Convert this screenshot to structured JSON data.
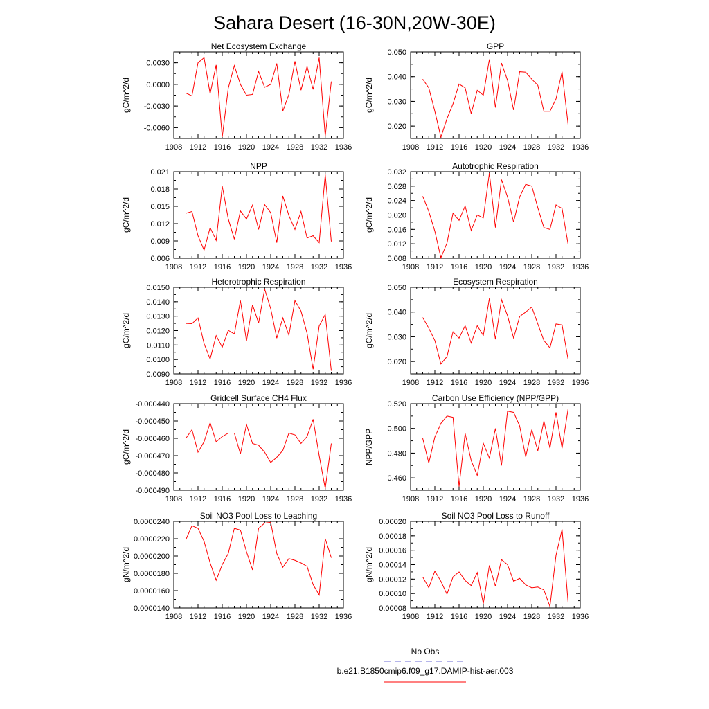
{
  "figure": {
    "title": "Sahara Desert (16-30N,20W-30E)"
  },
  "colors": {
    "series_line": "#ff0000",
    "obs_line": "#6b6bd6",
    "axis": "#000000",
    "background": "#ffffff"
  },
  "legend": {
    "obs_label": "No Obs",
    "model_label": "b.e21.B1850cmip6.f09_g17.DAMIP-hist-aer.003"
  },
  "chart_data": [
    {
      "type": "line",
      "title": "Net Ecosystem Exchange",
      "ylabel": "gC/m^2/d",
      "xlim": [
        1908,
        1936
      ],
      "xticks": [
        "1908",
        "1912",
        "1916",
        "1920",
        "1924",
        "1928",
        "1932",
        "1936"
      ],
      "ylim": [
        -0.0075,
        0.0045
      ],
      "yticks": [
        "-0.0060",
        "-0.0030",
        "0.0000",
        "0.0030"
      ],
      "ytick_values": [
        -0.006,
        -0.003,
        0.0,
        0.003
      ],
      "x": [
        1910,
        1911,
        1912,
        1913,
        1914,
        1915,
        1916,
        1917,
        1918,
        1919,
        1920,
        1921,
        1922,
        1923,
        1924,
        1925,
        1926,
        1927,
        1928,
        1929,
        1930,
        1931,
        1932,
        1933,
        1934
      ],
      "series": [
        {
          "values": [
            -0.0012,
            -0.0016,
            0.003,
            0.0037,
            -0.0013,
            0.0027,
            -0.0073,
            -0.0005,
            0.0026,
            0.0,
            -0.0015,
            -0.0014,
            0.0018,
            -0.0004,
            0.0,
            0.0029,
            -0.0037,
            -0.0014,
            0.0032,
            -0.0008,
            0.0025,
            -0.0007,
            0.0037,
            -0.0072,
            0.0004
          ]
        }
      ]
    },
    {
      "type": "line",
      "title": "GPP",
      "ylabel": "gC/m^2/d",
      "xlim": [
        1908,
        1936
      ],
      "xticks": [
        "1908",
        "1912",
        "1916",
        "1920",
        "1924",
        "1928",
        "1932",
        "1936"
      ],
      "ylim": [
        0.015,
        0.05
      ],
      "yticks": [
        "0.020",
        "0.030",
        "0.040",
        "0.050"
      ],
      "ytick_values": [
        0.02,
        0.03,
        0.04,
        0.05
      ],
      "x": [
        1910,
        1911,
        1912,
        1913,
        1914,
        1915,
        1916,
        1917,
        1918,
        1919,
        1920,
        1921,
        1922,
        1923,
        1924,
        1925,
        1926,
        1927,
        1928,
        1929,
        1930,
        1931,
        1932,
        1933,
        1934
      ],
      "series": [
        {
          "values": [
            0.039,
            0.0355,
            0.026,
            0.0155,
            0.023,
            0.029,
            0.037,
            0.0355,
            0.025,
            0.0345,
            0.0325,
            0.047,
            0.0275,
            0.0455,
            0.0385,
            0.0265,
            0.042,
            0.0418,
            0.039,
            0.0365,
            0.026,
            0.026,
            0.031,
            0.042,
            0.0205
          ]
        }
      ]
    },
    {
      "type": "line",
      "title": "NPP",
      "ylabel": "gC/m^2/d",
      "xlim": [
        1908,
        1936
      ],
      "xticks": [
        "1908",
        "1912",
        "1916",
        "1920",
        "1924",
        "1928",
        "1932",
        "1936"
      ],
      "ylim": [
        0.006,
        0.021
      ],
      "yticks": [
        "0.006",
        "0.009",
        "0.012",
        "0.015",
        "0.018",
        "0.021"
      ],
      "ytick_values": [
        0.006,
        0.009,
        0.012,
        0.015,
        0.018,
        0.021
      ],
      "x": [
        1910,
        1911,
        1912,
        1913,
        1914,
        1915,
        1916,
        1917,
        1918,
        1919,
        1920,
        1921,
        1922,
        1923,
        1924,
        1925,
        1926,
        1927,
        1928,
        1929,
        1930,
        1931,
        1932,
        1933,
        1934
      ],
      "series": [
        {
          "values": [
            0.0138,
            0.0141,
            0.0099,
            0.0074,
            0.0113,
            0.0091,
            0.0185,
            0.0128,
            0.0093,
            0.0142,
            0.0128,
            0.0152,
            0.011,
            0.0153,
            0.0139,
            0.0087,
            0.0168,
            0.0134,
            0.011,
            0.0141,
            0.0095,
            0.0099,
            0.0087,
            0.0205,
            0.0089
          ]
        }
      ]
    },
    {
      "type": "line",
      "title": "Autotrophic Respiration",
      "ylabel": "gC/m^2/d",
      "xlim": [
        1908,
        1936
      ],
      "xticks": [
        "1908",
        "1912",
        "1916",
        "1920",
        "1924",
        "1928",
        "1932",
        "1936"
      ],
      "ylim": [
        0.008,
        0.032
      ],
      "yticks": [
        "0.008",
        "0.012",
        "0.016",
        "0.020",
        "0.024",
        "0.028",
        "0.032"
      ],
      "ytick_values": [
        0.008,
        0.012,
        0.016,
        0.02,
        0.024,
        0.028,
        0.032
      ],
      "x": [
        1910,
        1911,
        1912,
        1913,
        1914,
        1915,
        1916,
        1917,
        1918,
        1919,
        1920,
        1921,
        1922,
        1923,
        1924,
        1925,
        1926,
        1927,
        1928,
        1929,
        1930,
        1931,
        1932,
        1933,
        1934
      ],
      "series": [
        {
          "values": [
            0.0252,
            0.021,
            0.0155,
            0.0081,
            0.0122,
            0.0205,
            0.0185,
            0.0225,
            0.0157,
            0.02,
            0.0192,
            0.0316,
            0.0165,
            0.0298,
            0.025,
            0.018,
            0.025,
            0.0285,
            0.028,
            0.022,
            0.0165,
            0.016,
            0.0228,
            0.0218,
            0.0118
          ]
        }
      ]
    },
    {
      "type": "line",
      "title": "Heterotrophic Respiration",
      "ylabel": "gC/m^2/d",
      "xlim": [
        1908,
        1936
      ],
      "xticks": [
        "1908",
        "1912",
        "1916",
        "1920",
        "1924",
        "1928",
        "1932",
        "1936"
      ],
      "ylim": [
        0.009,
        0.015
      ],
      "yticks": [
        "0.0090",
        "0.0100",
        "0.0110",
        "0.0120",
        "0.0130",
        "0.0140",
        "0.0150"
      ],
      "ytick_values": [
        0.009,
        0.01,
        0.011,
        0.012,
        0.013,
        0.014,
        0.015
      ],
      "x": [
        1910,
        1911,
        1912,
        1913,
        1914,
        1915,
        1916,
        1917,
        1918,
        1919,
        1920,
        1921,
        1922,
        1923,
        1924,
        1925,
        1926,
        1927,
        1928,
        1929,
        1930,
        1931,
        1932,
        1933,
        1934
      ],
      "series": [
        {
          "values": [
            0.0125,
            0.01248,
            0.01288,
            0.0111,
            0.01003,
            0.01165,
            0.01085,
            0.01202,
            0.01177,
            0.01408,
            0.01128,
            0.01379,
            0.01252,
            0.01488,
            0.01352,
            0.01148,
            0.01288,
            0.01168,
            0.01408,
            0.01335,
            0.01182,
            0.00932,
            0.01232,
            0.01312,
            0.00922
          ]
        }
      ]
    },
    {
      "type": "line",
      "title": "Ecosystem Respiration",
      "ylabel": "gC/m^2/d",
      "xlim": [
        1908,
        1936
      ],
      "xticks": [
        "1908",
        "1912",
        "1916",
        "1920",
        "1924",
        "1928",
        "1932",
        "1936"
      ],
      "ylim": [
        0.015,
        0.05
      ],
      "yticks": [
        "0.020",
        "0.030",
        "0.040",
        "0.050"
      ],
      "ytick_values": [
        0.02,
        0.03,
        0.04,
        0.05
      ],
      "x": [
        1910,
        1911,
        1912,
        1913,
        1914,
        1915,
        1916,
        1917,
        1918,
        1919,
        1920,
        1921,
        1922,
        1923,
        1924,
        1925,
        1926,
        1927,
        1928,
        1929,
        1930,
        1931,
        1932,
        1933,
        1934
      ],
      "series": [
        {
          "values": [
            0.0378,
            0.0335,
            0.0285,
            0.019,
            0.022,
            0.032,
            0.0295,
            0.0345,
            0.0275,
            0.0345,
            0.0305,
            0.0455,
            0.029,
            0.045,
            0.0385,
            0.0295,
            0.0382,
            0.04,
            0.042,
            0.0352,
            0.0285,
            0.0255,
            0.0352,
            0.0348,
            0.0208
          ]
        }
      ]
    },
    {
      "type": "line",
      "title": "Gridcell Surface CH4 Flux",
      "ylabel": "gC/m^2/d",
      "xlim": [
        1908,
        1936
      ],
      "xticks": [
        "1908",
        "1912",
        "1916",
        "1920",
        "1924",
        "1928",
        "1932",
        "1936"
      ],
      "ylim": [
        -0.00049,
        -0.00044
      ],
      "yticks": [
        "-0.000490",
        "-0.000480",
        "-0.000470",
        "-0.000460",
        "-0.000450",
        "-0.000440"
      ],
      "ytick_values": [
        -0.00049,
        -0.00048,
        -0.00047,
        -0.00046,
        -0.00045,
        -0.00044
      ],
      "x": [
        1910,
        1911,
        1912,
        1913,
        1914,
        1915,
        1916,
        1917,
        1918,
        1919,
        1920,
        1921,
        1922,
        1923,
        1924,
        1925,
        1926,
        1927,
        1928,
        1929,
        1930,
        1931,
        1932,
        1933,
        1934
      ],
      "series": [
        {
          "values": [
            -0.00046,
            -0.000455,
            -0.000468,
            -0.000462,
            -0.000451,
            -0.000462,
            -0.000459,
            -0.000457,
            -0.000457,
            -0.000469,
            -0.000452,
            -0.000463,
            -0.000464,
            -0.000468,
            -0.000474,
            -0.000471,
            -0.000467,
            -0.000457,
            -0.000458,
            -0.000463,
            -0.000459,
            -0.000449,
            -0.00047,
            -0.000489,
            -0.000463
          ]
        }
      ]
    },
    {
      "type": "line",
      "title": "Carbon Use Efficiency (NPP/GPP)",
      "ylabel": "NPP/GPP",
      "xlim": [
        1908,
        1936
      ],
      "xticks": [
        "1908",
        "1912",
        "1916",
        "1920",
        "1924",
        "1928",
        "1932",
        "1936"
      ],
      "ylim": [
        0.45,
        0.52
      ],
      "yticks": [
        "0.460",
        "0.480",
        "0.500",
        "0.520"
      ],
      "ytick_values": [
        0.46,
        0.48,
        0.5,
        0.52
      ],
      "x": [
        1910,
        1911,
        1912,
        1913,
        1914,
        1915,
        1916,
        1917,
        1918,
        1919,
        1920,
        1921,
        1922,
        1923,
        1924,
        1925,
        1926,
        1927,
        1928,
        1929,
        1930,
        1931,
        1932,
        1933,
        1934
      ],
      "series": [
        {
          "values": [
            0.492,
            0.472,
            0.493,
            0.504,
            0.51,
            0.509,
            0.453,
            0.496,
            0.474,
            0.462,
            0.488,
            0.476,
            0.5,
            0.47,
            0.514,
            0.513,
            0.502,
            0.477,
            0.499,
            0.482,
            0.506,
            0.484,
            0.513,
            0.484,
            0.516
          ]
        }
      ]
    },
    {
      "type": "line",
      "title": "Soil NO3 Pool Loss to Leaching",
      "ylabel": "gN/m^2/d",
      "xlim": [
        1908,
        1936
      ],
      "xticks": [
        "1908",
        "1912",
        "1916",
        "1920",
        "1924",
        "1928",
        "1932",
        "1936"
      ],
      "ylim": [
        1.4e-05,
        2.4e-05
      ],
      "yticks": [
        "0.0000140",
        "0.0000160",
        "0.0000180",
        "0.0000200",
        "0.0000220",
        "0.0000240"
      ],
      "ytick_values": [
        1.4e-05,
        1.6e-05,
        1.8e-05,
        2e-05,
        2.2e-05,
        2.4e-05
      ],
      "x": [
        1910,
        1911,
        1912,
        1913,
        1914,
        1915,
        1916,
        1917,
        1918,
        1919,
        1920,
        1921,
        1922,
        1923,
        1924,
        1925,
        1926,
        1927,
        1928,
        1929,
        1930,
        1931,
        1932,
        1933,
        1934
      ],
      "series": [
        {
          "values": [
            2.19e-05,
            2.35e-05,
            2.32e-05,
            2.17e-05,
            1.92e-05,
            1.72e-05,
            1.9e-05,
            2.03e-05,
            2.32e-05,
            2.3e-05,
            2.05e-05,
            1.84e-05,
            2.32e-05,
            2.38e-05,
            2.39e-05,
            2.03e-05,
            1.87e-05,
            1.97e-05,
            1.95e-05,
            1.92e-05,
            1.88e-05,
            1.67e-05,
            1.55e-05,
            2.2e-05,
            1.98e-05
          ]
        }
      ]
    },
    {
      "type": "line",
      "title": "Soil NO3 Pool Loss to Runoff",
      "ylabel": "gN/m^2/d",
      "xlim": [
        1908,
        1936
      ],
      "xticks": [
        "1908",
        "1912",
        "1916",
        "1920",
        "1924",
        "1928",
        "1932",
        "1936"
      ],
      "ylim": [
        8e-05,
        0.0002
      ],
      "yticks": [
        "0.00008",
        "0.00010",
        "0.00012",
        "0.00014",
        "0.00016",
        "0.00018",
        "0.00020"
      ],
      "ytick_values": [
        8e-05,
        0.0001,
        0.00012,
        0.00014,
        0.00016,
        0.00018,
        0.0002
      ],
      "x": [
        1910,
        1911,
        1912,
        1913,
        1914,
        1915,
        1916,
        1917,
        1918,
        1919,
        1920,
        1921,
        1922,
        1923,
        1924,
        1925,
        1926,
        1927,
        1928,
        1929,
        1930,
        1931,
        1932,
        1933,
        1934
      ],
      "series": [
        {
          "values": [
            0.000123,
            0.000108,
            0.000131,
            0.000117,
            9.9e-05,
            0.000123,
            0.00013,
            0.000118,
            0.000111,
            0.000129,
            8.6e-05,
            0.000139,
            0.00011,
            0.000147,
            0.00014,
            0.000117,
            0.000121,
            0.000112,
            0.000108,
            0.000109,
            0.000105,
            8.2e-05,
            0.000153,
            0.000189,
            8.7e-05
          ]
        }
      ]
    }
  ]
}
